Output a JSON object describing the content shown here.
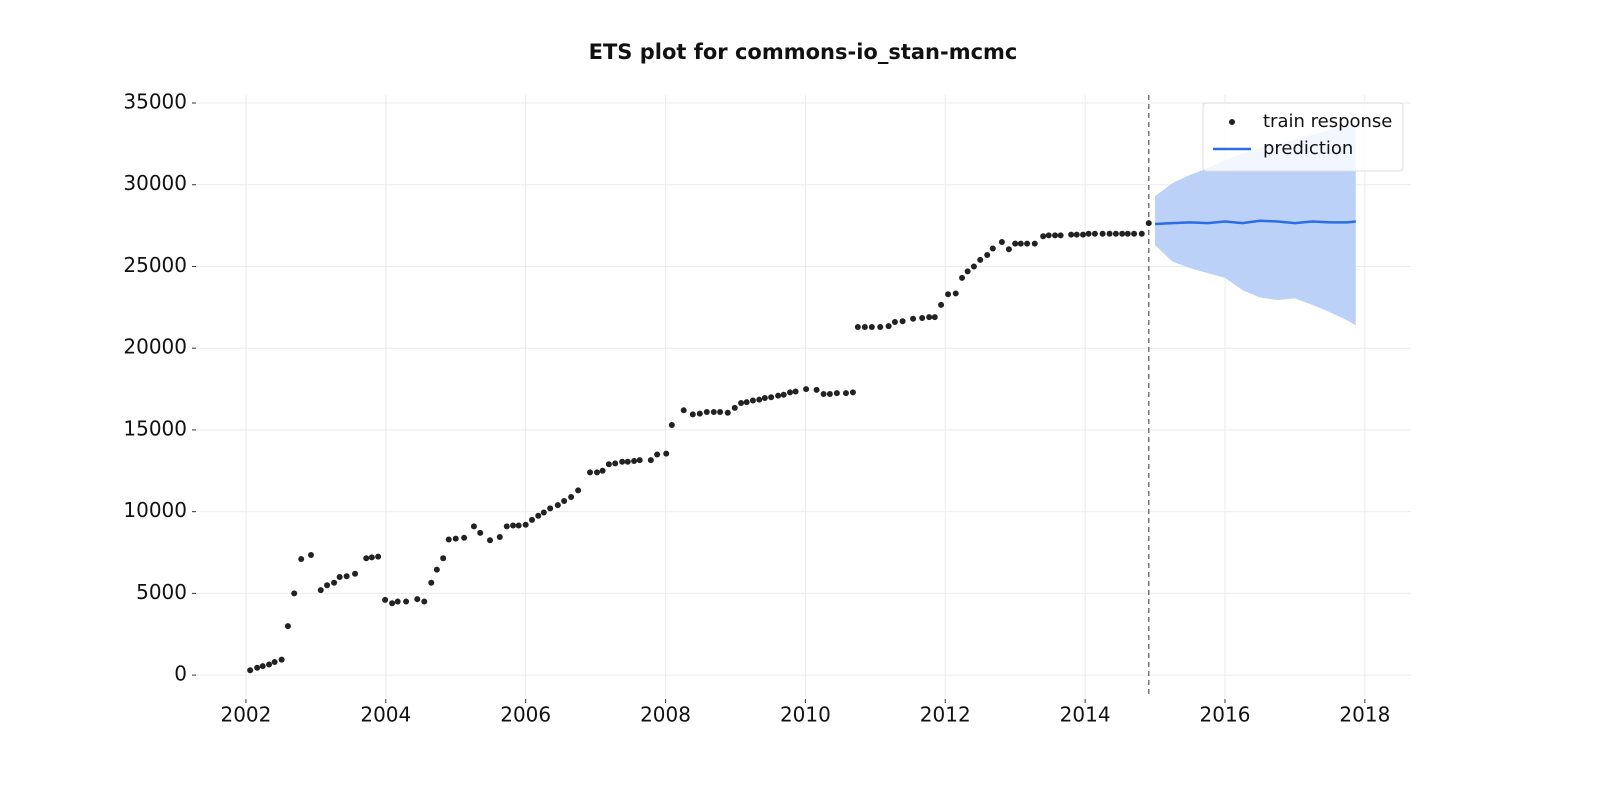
{
  "chart_data": {
    "type": "scatter",
    "title": "ETS plot for commons-io_stan-mcmc",
    "xlim": [
      2001.3,
      2018.66
    ],
    "ylim": [
      -1400,
      35490
    ],
    "xticks": [
      2002,
      2004,
      2006,
      2008,
      2010,
      2012,
      2014,
      2016,
      2018
    ],
    "yticks": [
      0,
      5000,
      10000,
      15000,
      20000,
      25000,
      30000,
      35000
    ],
    "grid": true,
    "legend": "upper right",
    "forecast_start": 2014.91,
    "series": [
      {
        "name": "train response",
        "type": "scatter",
        "color": "#222222",
        "x": [
          2002.06,
          2002.16,
          2002.24,
          2002.33,
          2002.41,
          2002.51,
          2002.6,
          2002.69,
          2002.79,
          2002.93,
          2003.07,
          2003.16,
          2003.26,
          2003.34,
          2003.44,
          2003.56,
          2003.72,
          2003.8,
          2003.89,
          2003.99,
          2004.09,
          2004.17,
          2004.29,
          2004.45,
          2004.55,
          2004.65,
          2004.73,
          2004.82,
          2004.9,
          2005.0,
          2005.12,
          2005.26,
          2005.35,
          2005.49,
          2005.63,
          2005.73,
          2005.82,
          2005.9,
          2006.0,
          2006.09,
          2006.18,
          2006.26,
          2006.35,
          2006.46,
          2006.55,
          2006.65,
          2006.75,
          2006.92,
          2007.02,
          2007.1,
          2007.19,
          2007.28,
          2007.38,
          2007.46,
          2007.55,
          2007.63,
          2007.79,
          2007.88,
          2008.01,
          2008.09,
          2008.26,
          2008.39,
          2008.49,
          2008.59,
          2008.69,
          2008.78,
          2008.89,
          2008.99,
          2009.08,
          2009.16,
          2009.25,
          2009.34,
          2009.42,
          2009.51,
          2009.61,
          2009.69,
          2009.78,
          2009.86,
          2010.01,
          2010.16,
          2010.26,
          2010.35,
          2010.45,
          2010.58,
          2010.68,
          2010.75,
          2010.85,
          2010.95,
          2011.07,
          2011.19,
          2011.28,
          2011.39,
          2011.54,
          2011.67,
          2011.77,
          2011.85,
          2011.94,
          2012.04,
          2012.15,
          2012.24,
          2012.32,
          2012.41,
          2012.5,
          2012.6,
          2012.68,
          2012.81,
          2012.91,
          2013.0,
          2013.08,
          2013.17,
          2013.28,
          2013.4,
          2013.48,
          2013.57,
          2013.65,
          2013.8,
          2013.88,
          2013.97,
          2014.05,
          2014.14,
          2014.25,
          2014.35,
          2014.44,
          2014.53,
          2014.61,
          2014.7,
          2014.81,
          2014.91
        ],
        "values": [
          300,
          450,
          550,
          650,
          800,
          950,
          3000,
          5000,
          7100,
          7350,
          5200,
          5500,
          5650,
          6000,
          6050,
          6200,
          7150,
          7200,
          7250,
          4600,
          4400,
          4500,
          4500,
          4650,
          4500,
          5650,
          6450,
          7150,
          8300,
          8350,
          8400,
          9100,
          8700,
          8250,
          8450,
          9100,
          9150,
          9150,
          9200,
          9500,
          9750,
          9950,
          10200,
          10400,
          10650,
          10900,
          11300,
          12400,
          12400,
          12500,
          12900,
          12950,
          13050,
          13050,
          13100,
          13150,
          13150,
          13500,
          13550,
          15300,
          16200,
          15950,
          16000,
          16100,
          16100,
          16100,
          16050,
          16350,
          16650,
          16700,
          16800,
          16850,
          16950,
          17000,
          17100,
          17150,
          17300,
          17350,
          17500,
          17450,
          17200,
          17200,
          17250,
          17250,
          17300,
          21300,
          21300,
          21300,
          21300,
          21350,
          21600,
          21650,
          21800,
          21850,
          21900,
          21900,
          22650,
          23300,
          23350,
          24300,
          24700,
          25000,
          25400,
          25700,
          26100,
          26500,
          26050,
          26400,
          26400,
          26400,
          26400,
          26850,
          26900,
          26900,
          26900,
          26950,
          26950,
          26950,
          27000,
          27000,
          27000,
          27000,
          27000,
          27000,
          27000,
          27000,
          27000,
          27650
        ]
      },
      {
        "name": "prediction",
        "type": "line",
        "color": "#2a6de6",
        "band_color": "#bcd1f8",
        "x": [
          2015.0,
          2015.25,
          2015.5,
          2015.75,
          2016.0,
          2016.25,
          2016.5,
          2016.75,
          2017.0,
          2017.25,
          2017.5,
          2017.75,
          2017.87
        ],
        "values": [
          27600,
          27650,
          27700,
          27650,
          27750,
          27650,
          27800,
          27750,
          27650,
          27750,
          27700,
          27700,
          27750
        ],
        "lower": [
          26300,
          25300,
          24900,
          24600,
          24300,
          23550,
          23100,
          22950,
          23050,
          22650,
          22200,
          21700,
          21400
        ],
        "upper": [
          29300,
          30100,
          30600,
          31000,
          31500,
          31900,
          32250,
          32500,
          32750,
          33050,
          33350,
          33650,
          33800
        ]
      }
    ]
  }
}
